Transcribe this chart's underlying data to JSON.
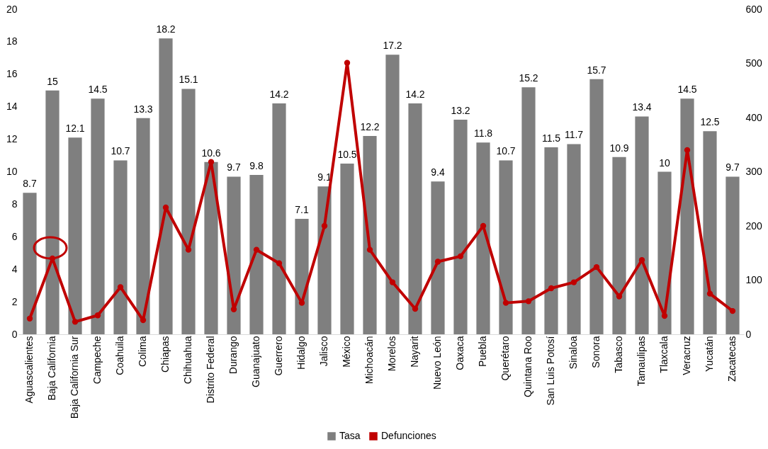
{
  "chart_data": {
    "type": "bar",
    "categories": [
      "Aguascalientes",
      "Baja California",
      "Baja California Sur",
      "Campeche",
      "Coahuila",
      "Colima",
      "Chiapas",
      "Chihuahua",
      "Distrito Federal",
      "Durango",
      "Guanajuato",
      "Guerrero",
      "Hidalgo",
      "Jalisco",
      "México",
      "Michoacán",
      "Morelos",
      "Nayarit",
      "Nuevo León",
      "Oaxaca",
      "Puebla",
      "Querétaro",
      "Quintana Roo",
      "San Luis Potosí",
      "Sinaloa",
      "Sonora",
      "Tabasco",
      "Tamaulipas",
      "Tlaxcala",
      "Veracruz",
      "Yucatán",
      "Zacatecas"
    ],
    "series": [
      {
        "name": "Tasa",
        "color": "#7f7f7f",
        "values": [
          8.7,
          15,
          12.1,
          14.5,
          10.7,
          13.3,
          18.2,
          15.1,
          10.6,
          9.7,
          9.8,
          14.2,
          7.1,
          9.1,
          10.5,
          12.2,
          17.2,
          14.2,
          9.4,
          13.2,
          11.8,
          10.7,
          15.2,
          11.5,
          11.7,
          15.7,
          10.9,
          13.4,
          10,
          14.5,
          12.5,
          9.7
        ],
        "value_labels": [
          "8.7",
          "15",
          "12.1",
          "14.5",
          "10.7",
          "13.3",
          "18.2",
          "15.1",
          "10.6",
          "9.7",
          "9.8",
          "14.2",
          "7.1",
          "9.1",
          "10.5",
          "12.2",
          "17.2",
          "14.2",
          "9.4",
          "13.2",
          "11.8",
          "10.7",
          "15.2",
          "11.5",
          "11.7",
          "15.7",
          "10.9",
          "13.4",
          "10",
          "14.5",
          "12.5",
          "9.7"
        ]
      },
      {
        "name": "Defunciones",
        "type": "line",
        "axis": "y2",
        "color": "#c00000",
        "values": [
          29,
          140,
          23,
          35,
          87,
          26,
          234,
          156,
          318,
          46,
          156,
          131,
          58,
          200,
          501,
          156,
          96,
          47,
          134,
          144,
          200,
          58,
          61,
          85,
          96,
          124,
          70,
          137,
          34,
          340,
          75,
          43
        ]
      }
    ],
    "ylim": [
      0,
      20
    ],
    "yticks": [
      0,
      2,
      4,
      6,
      8,
      10,
      12,
      14,
      16,
      18,
      20
    ],
    "y2lim": [
      0,
      600
    ],
    "y2ticks": [
      0,
      100,
      200,
      300,
      400,
      500,
      600
    ],
    "grid": false,
    "legend": "bottom",
    "marker": "circle",
    "line_style": "solid"
  }
}
